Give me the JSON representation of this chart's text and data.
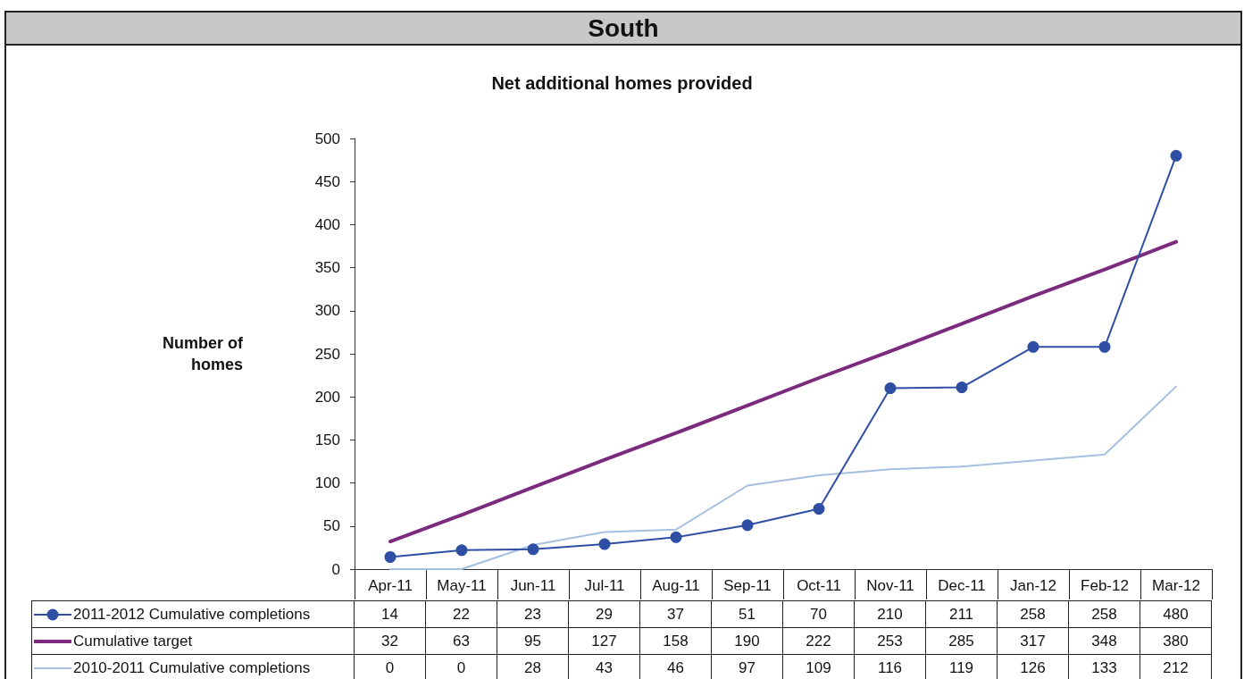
{
  "chart_data": {
    "type": "line",
    "title": "South",
    "subtitle": "Net additional homes provided",
    "ylabel": "Number of homes",
    "categories": [
      "Apr-11",
      "May-11",
      "Jun-11",
      "Jul-11",
      "Aug-11",
      "Sep-11",
      "Oct-11",
      "Nov-11",
      "Dec-11",
      "Jan-12",
      "Feb-12",
      "Mar-12"
    ],
    "series": [
      {
        "name": "2011-2012 Cumulative completions",
        "color": "#2e4fa3",
        "marker": "circle",
        "values": [
          14,
          22,
          23,
          29,
          37,
          51,
          70,
          210,
          211,
          258,
          258,
          480
        ]
      },
      {
        "name": "Cumulative target",
        "color": "#7b2a7e",
        "marker": "none",
        "values": [
          32,
          63,
          95,
          127,
          158,
          190,
          222,
          253,
          285,
          317,
          348,
          380
        ]
      },
      {
        "name": "2010-2011 Cumulative completions",
        "color": "#a6bfe0",
        "marker": "none",
        "values": [
          0,
          0,
          28,
          43,
          46,
          97,
          109,
          116,
          119,
          126,
          133,
          212
        ]
      }
    ],
    "ylim": [
      0,
      500
    ],
    "yticks": [
      0,
      50,
      100,
      150,
      200,
      250,
      300,
      350,
      400,
      450,
      500
    ],
    "grid": false,
    "legend": "bottom",
    "data_labels": true
  }
}
